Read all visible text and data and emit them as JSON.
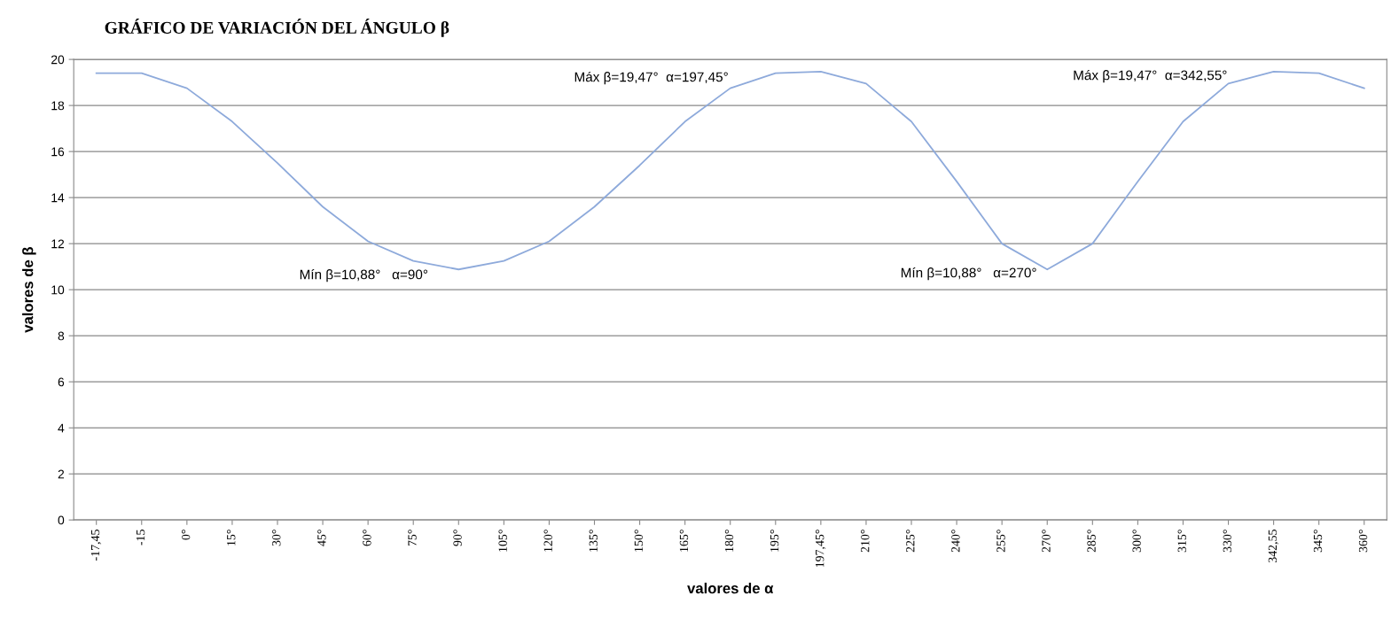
{
  "chart_data": {
    "type": "line",
    "title": "GRÁFICO DE VARIACIÓN DEL ÁNGULO β",
    "xlabel": "valores de α",
    "ylabel": "valores de β",
    "categories": [
      "-17,45",
      "-15",
      "0°",
      "15°",
      "30°",
      "45°",
      "60°",
      "75°",
      "90°",
      "105°",
      "120°",
      "135°",
      "150°",
      "165°",
      "180°",
      "195°",
      "197,45°",
      "210°",
      "225°",
      "240°",
      "255°",
      "270°",
      "285°",
      "300°",
      "315°",
      "330°",
      "342,55",
      "345°",
      "360°"
    ],
    "series": [
      {
        "color": "#8eaadb",
        "values": [
          19.4,
          19.4,
          18.75,
          17.3,
          15.5,
          13.6,
          12.1,
          11.25,
          10.88,
          11.25,
          12.1,
          13.6,
          15.4,
          17.3,
          18.75,
          19.4,
          19.47,
          18.95,
          17.3,
          14.7,
          12.0,
          10.88,
          12.0,
          14.7,
          17.3,
          18.95,
          19.47,
          19.4,
          18.75
        ]
      }
    ],
    "ylim": [
      0,
      20
    ],
    "yticks": [
      0,
      2,
      4,
      6,
      8,
      10,
      12,
      14,
      16,
      18,
      20
    ],
    "grid": "y",
    "legend": false,
    "annotations": [
      "Máx β=19,47°  α=197,45°",
      "Mín β=10,88°   α=90°",
      "Mín β=10,88°   α=270°",
      "Máx β=19,47°  α=342,55°"
    ]
  }
}
